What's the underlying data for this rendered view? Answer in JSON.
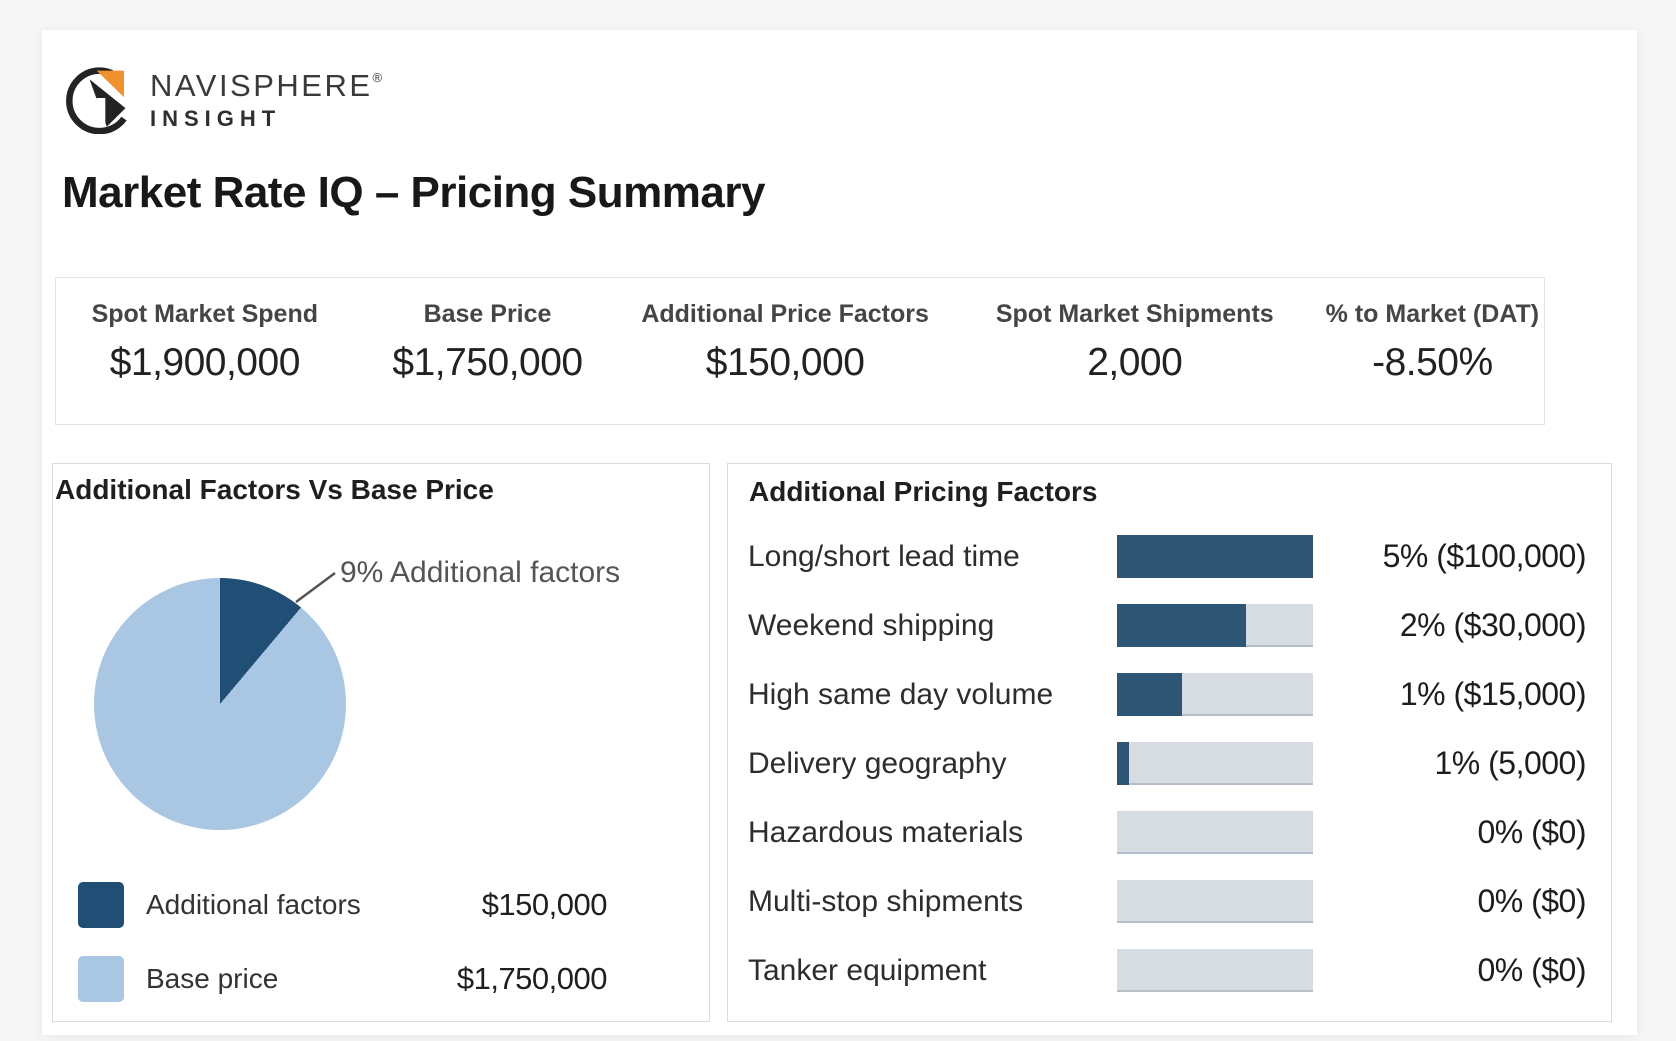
{
  "brand": {
    "name": "NAVISPHERE",
    "registered": "®",
    "subtitle": "INSIGHT",
    "logo_colors": {
      "black": "#232323",
      "orange": "#f0912d"
    }
  },
  "page_title": "Market Rate IQ – Pricing Summary",
  "kpis": [
    {
      "label": "Spot Market Spend",
      "value": "$1,900,000"
    },
    {
      "label": "Base Price",
      "value": "$1,750,000"
    },
    {
      "label": "Additional Price Factors",
      "value": "$150,000"
    },
    {
      "label": "Spot Market Shipments",
      "value": "2,000"
    },
    {
      "label": "% to Market (DAT)",
      "value": "-8.50%"
    }
  ],
  "chart_data": [
    {
      "type": "pie",
      "title": "Additional Factors Vs Base Price",
      "slices": [
        {
          "label": "Additional factors",
          "value": 150000,
          "value_text": "$150,000",
          "pct": 9,
          "color": "#204e74"
        },
        {
          "label": "Base price",
          "value": 1750000,
          "value_text": "$1,750,000",
          "pct": 91,
          "color": "#a9c6e3"
        }
      ],
      "annotation": "9% Additional factors",
      "start_angle_deg": 0,
      "annotation_slice_sweep_deg": 40,
      "legend_position": "bottom"
    },
    {
      "type": "bar",
      "orientation": "horizontal",
      "title": "Additional Pricing Factors",
      "categories": [
        "Long/short lead time",
        "Weekend shipping",
        "High same day volume",
        "Delivery geography",
        "Hazardous materials",
        "Multi-stop shipments",
        "Tanker equipment"
      ],
      "values_pct": [
        5,
        2,
        1,
        1,
        0,
        0,
        0
      ],
      "values_usd": [
        100000,
        30000,
        15000,
        5000,
        0,
        0,
        0
      ],
      "value_labels": [
        "5% ($100,000)",
        "2% ($30,000)",
        "1% ($15,000)",
        "1% (5,000)",
        "0% ($0)",
        "0% ($0)",
        "0% ($0)"
      ],
      "bar_fill_fraction": [
        1,
        0.66,
        0.33,
        0.06,
        0,
        0,
        0
      ],
      "bar_color": "#2e5574",
      "track_color": "#d7dce2",
      "grid": false,
      "legend_position": "none"
    }
  ]
}
